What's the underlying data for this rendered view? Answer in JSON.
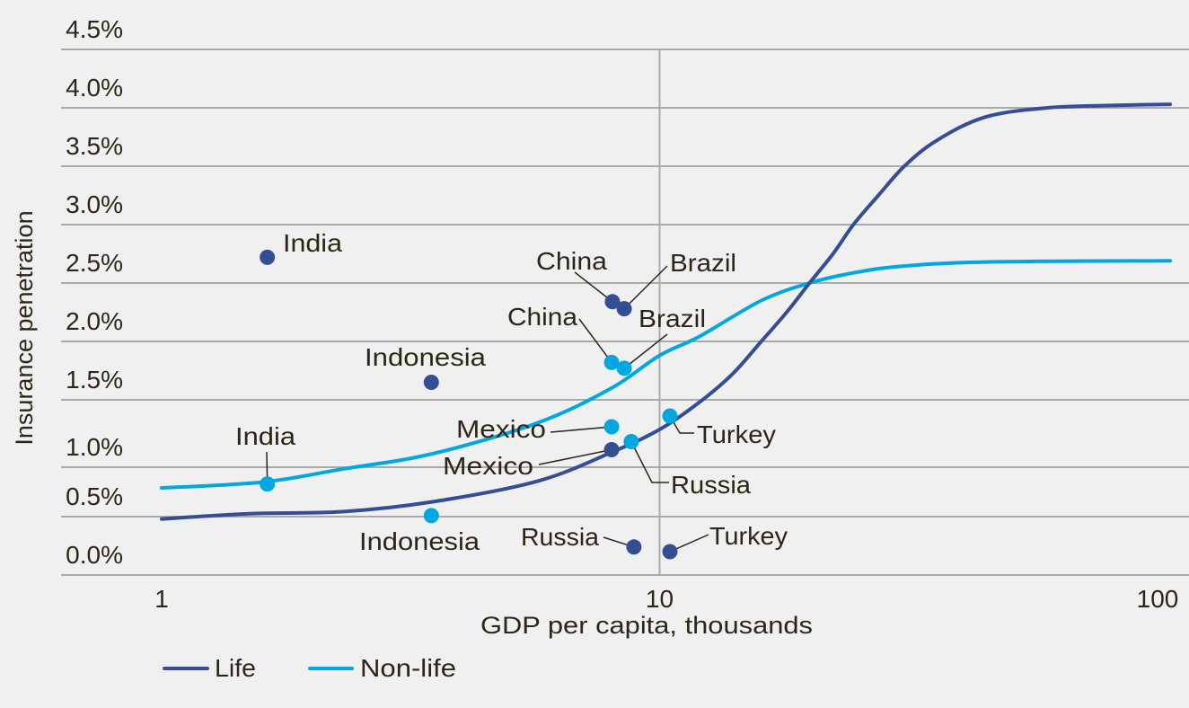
{
  "chart_data": {
    "type": "line",
    "title": "",
    "xlabel": "GDP per capita, thousands",
    "ylabel": "Insurance penetration",
    "x_scale": "log",
    "xlim": [
      0.75,
      110
    ],
    "ylim": [
      0,
      4.5
    ],
    "x_ticks": [
      {
        "value": 1,
        "label": "1"
      },
      {
        "value": 10,
        "label": "10"
      },
      {
        "value": 100,
        "label": "100"
      }
    ],
    "y_ticks": [
      {
        "value": 0.0,
        "label": "0.0%"
      },
      {
        "value": 0.5,
        "label": "0.5%"
      },
      {
        "value": 1.0,
        "label": "1.0%"
      },
      {
        "value": 1.5,
        "label": "1.5%"
      },
      {
        "value": 2.0,
        "label": "2.0%"
      },
      {
        "value": 2.5,
        "label": "2.5%"
      },
      {
        "value": 3.0,
        "label": "3.0%"
      },
      {
        "value": 3.5,
        "label": "3.5%"
      },
      {
        "value": 4.0,
        "label": "4.0%"
      },
      {
        "value": 4.5,
        "label": "4.5%"
      }
    ],
    "grid": "horizontal, plus vertical line at x=10",
    "legend_position": "bottom-left",
    "series": [
      {
        "name": "Life",
        "color": "#344e94",
        "curve": [
          [
            1,
            0.48
          ],
          [
            1.5,
            0.53
          ],
          [
            2.3,
            0.55
          ],
          [
            3.5,
            0.65
          ],
          [
            5.7,
            0.86
          ],
          [
            8,
            1.11
          ],
          [
            10,
            1.28
          ],
          [
            12,
            1.48
          ],
          [
            14,
            1.72
          ],
          [
            16,
            2.0
          ],
          [
            18,
            2.25
          ],
          [
            20,
            2.5
          ],
          [
            22.3,
            2.75
          ],
          [
            24.5,
            3.0
          ],
          [
            27.5,
            3.25
          ],
          [
            31,
            3.5
          ],
          [
            36,
            3.72
          ],
          [
            45,
            3.92
          ],
          [
            60,
            4.0
          ],
          [
            80,
            4.02
          ],
          [
            106,
            4.03
          ]
        ],
        "points": [
          {
            "country": "India",
            "x": 1.63,
            "y": 2.72
          },
          {
            "country": "Indonesia",
            "x": 3.48,
            "y": 1.65
          },
          {
            "country": "China",
            "x": 8.04,
            "y": 2.34
          },
          {
            "country": "Brazil",
            "x": 8.49,
            "y": 2.28
          },
          {
            "country": "Mexico",
            "x": 8.01,
            "y": 1.13
          },
          {
            "country": "Russia",
            "x": 8.88,
            "y": 0.24
          },
          {
            "country": "Turkey",
            "x": 10.49,
            "y": 0.2
          }
        ]
      },
      {
        "name": "Non-life",
        "color": "#00a7e0",
        "curve": [
          [
            1,
            0.79
          ],
          [
            1.6,
            0.85
          ],
          [
            2.3,
            0.98
          ],
          [
            3.5,
            1.1
          ],
          [
            5.7,
            1.33
          ],
          [
            8,
            1.6
          ],
          [
            10,
            1.88
          ],
          [
            12,
            2.04
          ],
          [
            16,
            2.35
          ],
          [
            20,
            2.5
          ],
          [
            24,
            2.58
          ],
          [
            30,
            2.64
          ],
          [
            45,
            2.68
          ],
          [
            106,
            2.69
          ]
        ],
        "points": [
          {
            "country": "India",
            "x": 1.63,
            "y": 0.83
          },
          {
            "country": "Indonesia",
            "x": 3.48,
            "y": 0.51
          },
          {
            "country": "China",
            "x": 8.01,
            "y": 1.82
          },
          {
            "country": "Brazil",
            "x": 8.49,
            "y": 1.77
          },
          {
            "country": "Mexico",
            "x": 8.01,
            "y": 1.3
          },
          {
            "country": "Russia",
            "x": 8.77,
            "y": 1.19
          },
          {
            "country": "Turkey",
            "x": 10.49,
            "y": 1.38
          }
        ]
      }
    ]
  },
  "colors": {
    "background": "#f0f0f0",
    "grid": "#aaaaa6",
    "text": "#2b2617",
    "life": "#344e94",
    "nonlife": "#00a7e0"
  }
}
